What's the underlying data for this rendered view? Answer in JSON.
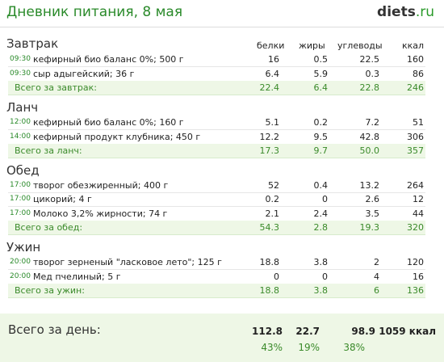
{
  "header": {
    "title": "Дневник питания, 8 мая",
    "logo_main": "diets",
    "logo_suffix": ".ru"
  },
  "columns": {
    "proteins": "белки",
    "fats": "жиры",
    "carbs": "углеводы",
    "kcal": "ккал"
  },
  "meals": {
    "breakfast": {
      "title": "Завтрак",
      "items": [
        {
          "time": "09:30",
          "name": "кефирный био баланс 0%; 500 г",
          "proteins": "16",
          "fats": "0.5",
          "carbs": "22.5",
          "kcal": "160"
        },
        {
          "time": "09:30",
          "name": "сыр адыгейский; 36 г",
          "proteins": "6.4",
          "fats": "5.9",
          "carbs": "0.3",
          "kcal": "86"
        }
      ],
      "total": {
        "label": "Всего за завтрак:",
        "proteins": "22.4",
        "fats": "6.4",
        "carbs": "22.8",
        "kcal": "246"
      }
    },
    "lunch": {
      "title": "Ланч",
      "items": [
        {
          "time": "12:00",
          "name": "кефирный био баланс 0%; 160 г",
          "proteins": "5.1",
          "fats": "0.2",
          "carbs": "7.2",
          "kcal": "51"
        },
        {
          "time": "14:00",
          "name": "кефирный продукт клубника; 450 г",
          "proteins": "12.2",
          "fats": "9.5",
          "carbs": "42.8",
          "kcal": "306"
        }
      ],
      "total": {
        "label": "Всего за ланч:",
        "proteins": "17.3",
        "fats": "9.7",
        "carbs": "50.0",
        "kcal": "357"
      }
    },
    "dinner": {
      "title": "Обед",
      "items": [
        {
          "time": "17:00",
          "name": "творог обезжиренный; 400 г",
          "proteins": "52",
          "fats": "0.4",
          "carbs": "13.2",
          "kcal": "264"
        },
        {
          "time": "17:00",
          "name": "цикорий; 4 г",
          "proteins": "0.2",
          "fats": "0",
          "carbs": "2.6",
          "kcal": "12"
        },
        {
          "time": "17:00",
          "name": "Молоко 3,2% жирности; 74 г",
          "proteins": "2.1",
          "fats": "2.4",
          "carbs": "3.5",
          "kcal": "44"
        }
      ],
      "total": {
        "label": "Всего за обед:",
        "proteins": "54.3",
        "fats": "2.8",
        "carbs": "19.3",
        "kcal": "320"
      }
    },
    "supper": {
      "title": "Ужин",
      "items": [
        {
          "time": "20:00",
          "name": "творог зерненый \"ласковое лето\"; 125 г",
          "proteins": "18.8",
          "fats": "3.8",
          "carbs": "2",
          "kcal": "120"
        },
        {
          "time": "20:00",
          "name": "Мед пчелиный; 5 г",
          "proteins": "0",
          "fats": "0",
          "carbs": "4",
          "kcal": "16"
        }
      ],
      "total": {
        "label": "Всего за ужин:",
        "proteins": "18.8",
        "fats": "3.8",
        "carbs": "6",
        "kcal": "136"
      }
    }
  },
  "day_total": {
    "label": "Всего за день:",
    "proteins": "112.8",
    "fats": "22.7",
    "carbs": "98.9",
    "kcal": "1059 ккал",
    "proteins_pct": "43%",
    "fats_pct": "19%",
    "carbs_pct": "38%"
  }
}
